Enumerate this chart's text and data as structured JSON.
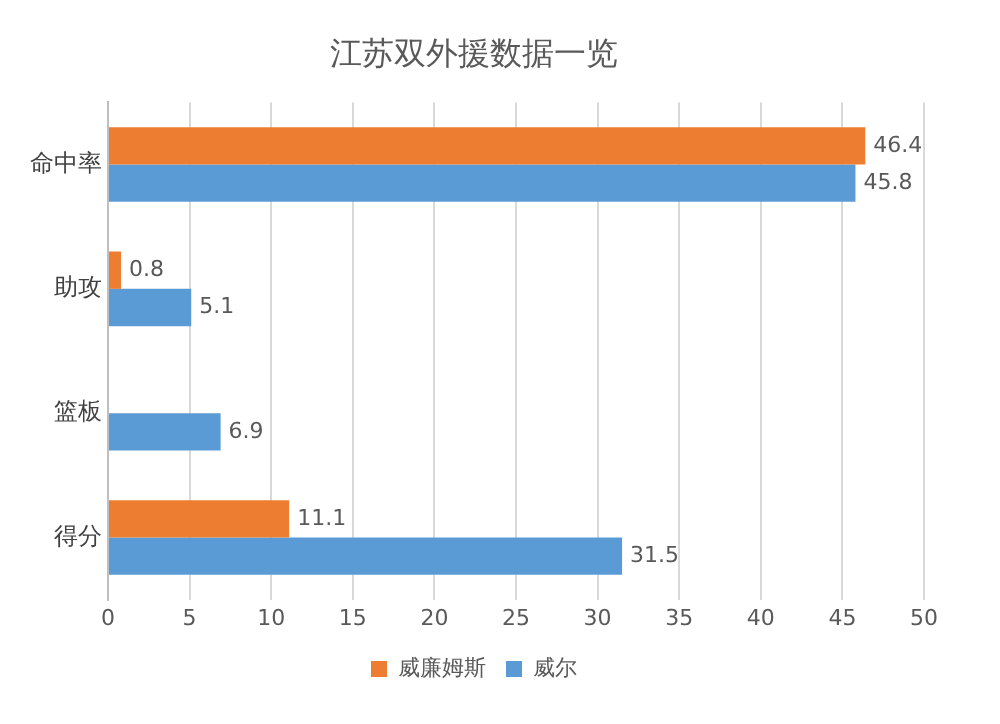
{
  "chart_data": {
    "type": "bar",
    "orientation": "horizontal",
    "title": "江苏双外援数据一览",
    "categories": [
      "命中率",
      "助攻",
      "篮板",
      "得分"
    ],
    "series": [
      {
        "name": "威廉姆斯",
        "color": "#ed7d31",
        "values": [
          46.4,
          0.8,
          null,
          11.1
        ]
      },
      {
        "name": "威尔",
        "color": "#5b9bd5",
        "values": [
          45.8,
          5.1,
          6.9,
          31.5
        ]
      }
    ],
    "xlim": [
      0,
      50
    ],
    "xticks": [
      0,
      5,
      10,
      15,
      20,
      25,
      30,
      35,
      40,
      45,
      50
    ],
    "grid": "x",
    "legend": "bottom",
    "data_labels": true
  }
}
